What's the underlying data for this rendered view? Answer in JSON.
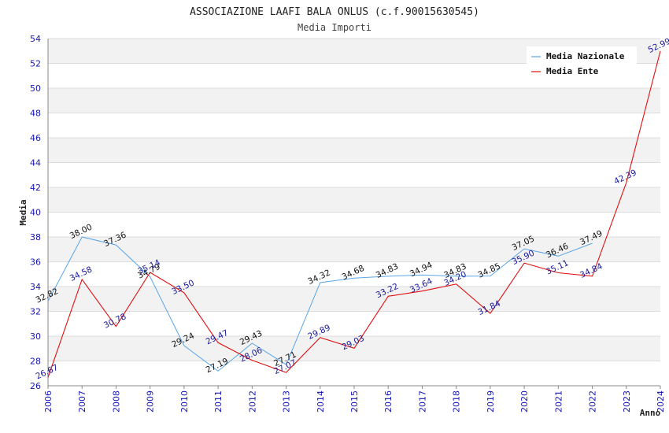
{
  "chart_data": {
    "type": "line",
    "title": "ASSOCIAZIONE LAAFI BALA ONLUS (c.f.90015630545)",
    "subtitle": "Media Importi",
    "xlabel": "Anno",
    "ylabel": "Media",
    "ylim": [
      26,
      54
    ],
    "yticks": [
      "26",
      "28",
      "30",
      "32",
      "34",
      "36",
      "38",
      "40",
      "42",
      "44",
      "46",
      "48",
      "50",
      "52",
      "54"
    ],
    "x": [
      "2006",
      "2007",
      "2008",
      "2009",
      "2010",
      "2011",
      "2012",
      "2013",
      "2014",
      "2015",
      "2016",
      "2017",
      "2018",
      "2019",
      "2020",
      "2021",
      "2022",
      "2023",
      "2024"
    ],
    "legend_position": "top-right",
    "series": [
      {
        "name": "Media Nazionale",
        "color": "#5aa6e8",
        "label_color": "#111111",
        "values": [
          32.82,
          38.0,
          37.36,
          34.79,
          29.24,
          27.19,
          29.43,
          27.71,
          34.32,
          34.68,
          34.83,
          34.94,
          34.83,
          34.85,
          37.05,
          36.46,
          37.49,
          null,
          null
        ],
        "labels": [
          "32.82",
          "38.00",
          "37.36",
          "34.79",
          "29.24",
          "27.19",
          "29.43",
          "27.71",
          "34.32",
          "34.68",
          "34.83",
          "34.94",
          "34.83",
          "34.85",
          "37.05",
          "36.46",
          "37.49",
          null,
          null
        ]
      },
      {
        "name": "Media Ente",
        "color": "#e01010",
        "label_color": "#1a1a9a",
        "values": [
          26.67,
          34.58,
          30.78,
          35.14,
          33.5,
          29.47,
          28.06,
          27.07,
          29.89,
          29.03,
          33.22,
          33.64,
          34.2,
          31.84,
          35.9,
          35.11,
          34.84,
          42.39,
          52.99
        ],
        "labels": [
          "26.67",
          "34.58",
          "30.78",
          "35.14",
          "33.50",
          "29.47",
          "28.06",
          "27.07",
          "29.89",
          "29.03",
          "33.22",
          "33.64",
          "34.20",
          "31.84",
          "35.90",
          "35.11",
          "34.84",
          "42.39",
          "52.99"
        ]
      }
    ]
  }
}
